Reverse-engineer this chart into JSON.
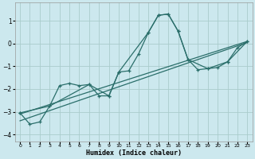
{
  "xlabel": "Humidex (Indice chaleur)",
  "bg_color": "#cce8ee",
  "grid_color": "#aacccc",
  "line_color": "#2a6e6a",
  "xlim": [
    -0.5,
    23.5
  ],
  "ylim": [
    -4.3,
    1.8
  ],
  "yticks": [
    -4,
    -3,
    -2,
    -1,
    0,
    1
  ],
  "xticks": [
    0,
    1,
    2,
    3,
    4,
    5,
    6,
    7,
    8,
    9,
    10,
    11,
    12,
    13,
    14,
    15,
    16,
    17,
    18,
    19,
    20,
    21,
    22,
    23
  ],
  "curve_main_x": [
    0,
    1,
    2,
    3,
    4,
    5,
    6,
    7,
    8,
    9,
    10,
    11,
    12,
    13,
    14,
    15,
    16,
    17,
    18,
    19,
    20,
    21,
    22,
    23
  ],
  "curve_main_y": [
    -3.05,
    -3.55,
    -3.45,
    -2.75,
    -1.85,
    -1.75,
    -1.85,
    -1.8,
    -2.3,
    -2.3,
    -1.25,
    -1.2,
    -0.45,
    0.5,
    1.25,
    1.3,
    0.55,
    -0.7,
    -1.15,
    -1.1,
    -1.05,
    -0.8,
    -0.18,
    0.1
  ],
  "curve_smooth_x": [
    0,
    3,
    7,
    9,
    10,
    13,
    14,
    15,
    16,
    17,
    19,
    21,
    23
  ],
  "curve_smooth_y": [
    -3.05,
    -2.75,
    -1.8,
    -2.3,
    -1.25,
    0.5,
    1.25,
    1.3,
    0.55,
    -0.7,
    -1.1,
    -0.8,
    0.1
  ],
  "line1_x": [
    0,
    23
  ],
  "line1_y": [
    -3.4,
    0.05
  ],
  "line2_x": [
    0,
    23
  ],
  "line2_y": [
    -3.1,
    0.1
  ]
}
